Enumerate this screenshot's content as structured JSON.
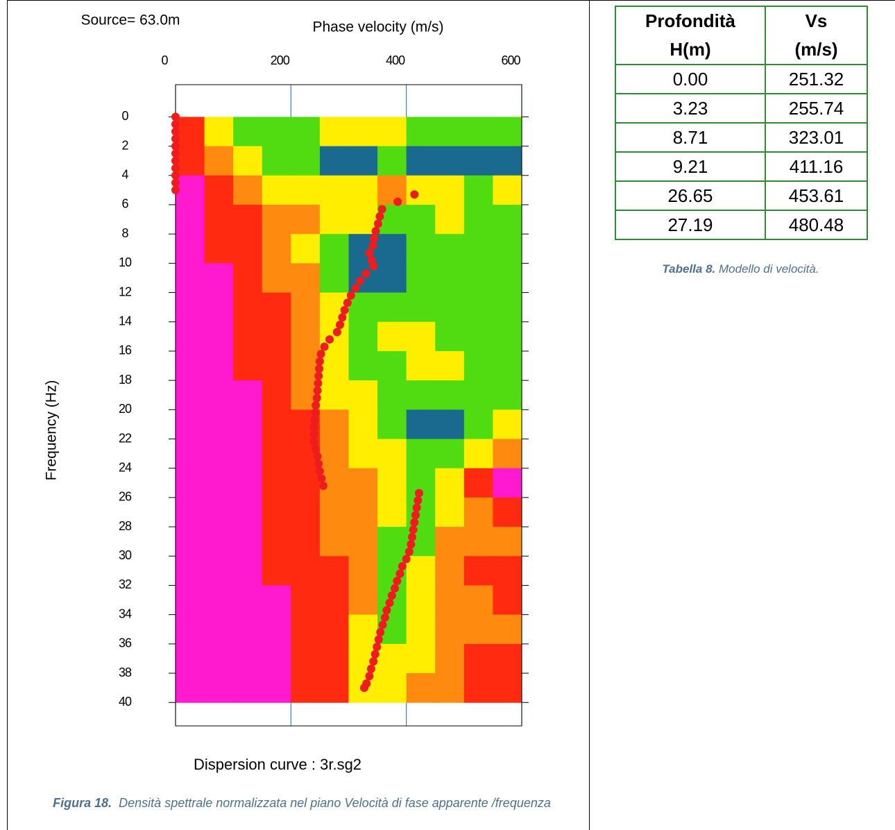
{
  "figure": {
    "chart_data": {
      "type": "heatmap",
      "annotation": "Source= 63.0m",
      "x_label": "Phase velocity (m/s)",
      "y_label": "Frequency (Hz)",
      "footer": "Dispersion curve : 3r.sg2",
      "xlim": [
        0,
        600
      ],
      "xticks": [
        0,
        200,
        400,
        600
      ],
      "ylim": [
        -2.2,
        41.6
      ],
      "y_inverted": true,
      "yticks": [
        0,
        2,
        4,
        6,
        8,
        10,
        12,
        14,
        16,
        18,
        20,
        22,
        24,
        26,
        28,
        30,
        32,
        34,
        36,
        38,
        40
      ],
      "grid": true,
      "grid_color": "#3a7fc0",
      "velocity_bins": [
        0,
        50,
        100,
        150,
        200,
        250,
        300,
        350,
        400,
        450,
        500,
        550,
        600
      ],
      "frequency_bins": [
        0,
        2,
        4,
        6,
        8,
        10,
        12,
        14,
        16,
        18,
        20,
        22,
        24,
        26,
        28,
        30,
        32,
        34,
        36,
        38,
        40
      ],
      "colorscale": [
        "#ff1ad0",
        "#ff2a10",
        "#ff8a10",
        "#ffee00",
        "#50dc10",
        "#1a6a90"
      ],
      "z": [
        [
          0.2,
          0.6,
          0.7,
          0.8,
          0.7,
          0.5,
          0.6,
          0.5,
          0.7,
          0.8,
          0.8,
          0.8
        ],
        [
          0.1,
          0.3,
          0.5,
          0.8,
          0.8,
          0.9,
          0.9,
          0.8,
          0.9,
          1,
          1,
          0.9
        ],
        [
          0,
          0.2,
          0.3,
          0.5,
          0.6,
          0.6,
          0.5,
          0.4,
          0.5,
          0.6,
          0.7,
          0.6
        ],
        [
          0,
          0.1,
          0.2,
          0.3,
          0.4,
          0.5,
          0.6,
          0.7,
          0.7,
          0.6,
          0.7,
          0.7
        ],
        [
          0,
          0.1,
          0.2,
          0.3,
          0.5,
          0.8,
          0.9,
          0.9,
          0.8,
          0.7,
          0.7,
          0.7
        ],
        [
          0,
          0,
          0.2,
          0.3,
          0.4,
          0.7,
          0.9,
          0.9,
          0.8,
          0.8,
          0.7,
          0.7
        ],
        [
          0,
          0,
          0.1,
          0.2,
          0.3,
          0.6,
          0.8,
          0.7,
          0.7,
          0.8,
          0.8,
          0.7
        ],
        [
          0,
          0,
          0.1,
          0.2,
          0.3,
          0.6,
          0.7,
          0.5,
          0.5,
          0.7,
          0.8,
          0.8
        ],
        [
          0,
          0,
          0.1,
          0.2,
          0.3,
          0.5,
          0.7,
          0.7,
          0.6,
          0.6,
          0.7,
          0.8
        ],
        [
          0,
          0,
          0,
          0.1,
          0.3,
          0.5,
          0.6,
          0.7,
          0.7,
          0.8,
          0.8,
          0.7
        ],
        [
          0,
          0,
          0,
          0.1,
          0.2,
          0.4,
          0.6,
          0.7,
          0.9,
          1,
          0.8,
          0.6
        ],
        [
          0,
          0,
          0,
          0.1,
          0.2,
          0.3,
          0.5,
          0.6,
          0.8,
          0.8,
          0.6,
          0.4
        ],
        [
          0,
          0,
          0,
          0.1,
          0.2,
          0.3,
          0.4,
          0.6,
          0.8,
          0.6,
          0.2,
          0
        ],
        [
          0,
          0,
          0,
          0.1,
          0.2,
          0.3,
          0.4,
          0.6,
          0.8,
          0.5,
          0.3,
          0.2
        ],
        [
          0,
          0,
          0,
          0.1,
          0.2,
          0.3,
          0.4,
          0.7,
          0.7,
          0.4,
          0.3,
          0.3
        ],
        [
          0,
          0,
          0,
          0.1,
          0.2,
          0.2,
          0.4,
          0.7,
          0.5,
          0.4,
          0.2,
          0.2
        ],
        [
          0,
          0,
          0,
          0,
          0.1,
          0.2,
          0.4,
          0.7,
          0.6,
          0.4,
          0.3,
          0.2
        ],
        [
          0,
          0,
          0,
          0,
          0.1,
          0.2,
          0.5,
          0.7,
          0.5,
          0.4,
          0.3,
          0.3
        ],
        [
          0,
          0,
          0,
          0,
          0.1,
          0.2,
          0.5,
          0.6,
          0.5,
          0.3,
          0.1,
          0.1
        ],
        [
          0,
          0,
          0,
          0,
          0.1,
          0.2,
          0.6,
          0.5,
          0.4,
          0.3,
          0.2,
          0.2
        ]
      ],
      "points": {
        "color": "#ee1c1c",
        "frequency": [
          0,
          0.5,
          1,
          1.5,
          2,
          2.5,
          3,
          3.5,
          4,
          4.5,
          5,
          5.3,
          5.8,
          6.3,
          6.8,
          7.3,
          7.8,
          8.3,
          8.8,
          9.3,
          9.8,
          10.2,
          10.7,
          11.2,
          11.7,
          12.2,
          12.7,
          13.2,
          13.7,
          14.2,
          14.7,
          15.2,
          15.7,
          16.2,
          16.7,
          17.2,
          17.7,
          18.2,
          18.7,
          19.2,
          19.7,
          20.2,
          20.7,
          21.2,
          21.7,
          22.2,
          22.7,
          23.2,
          23.7,
          24.2,
          24.7,
          25.2,
          25.7,
          26.2,
          26.7,
          27.2,
          27.7,
          28.2,
          28.7,
          29.2,
          29.7,
          30.2,
          30.7,
          31.2,
          31.7,
          32.2,
          32.7,
          33.2,
          33.7,
          34.2,
          34.7,
          35.2,
          35.7,
          36.2,
          36.7,
          37.2,
          37.7,
          38.2,
          38.7,
          39
        ],
        "velocity": [
          0,
          0,
          0,
          0,
          0,
          0,
          0,
          0,
          0,
          0,
          0,
          414,
          385,
          358,
          354,
          351,
          347,
          344,
          342,
          336,
          340,
          343,
          330,
          320,
          312,
          304,
          298,
          293,
          289,
          285,
          280,
          267,
          258,
          252,
          250,
          249,
          248,
          247,
          246,
          245,
          243,
          242,
          241,
          240,
          240,
          240,
          243,
          246,
          248,
          250,
          253,
          256,
          422,
          420,
          418,
          416,
          414,
          412,
          410,
          408,
          405,
          400,
          393,
          389,
          384,
          380,
          375,
          371,
          366,
          363,
          359,
          355,
          352,
          349,
          346,
          343,
          339,
          336,
          331,
          327
        ]
      }
    },
    "caption_label": "Figura 18.",
    "caption_text": "Densità spettrale normalizzata nel piano Velocità di fase apparente /frequenza"
  },
  "table": {
    "header": [
      [
        "Profondità",
        "H(m)"
      ],
      [
        "Vs",
        "(m/s)"
      ]
    ],
    "rows": [
      [
        "0.00",
        "251.32"
      ],
      [
        "3.23",
        "255.74"
      ],
      [
        "8.71",
        "323.01"
      ],
      [
        "9.21",
        "411.16"
      ],
      [
        "26.65",
        "453.61"
      ],
      [
        "27.19",
        "480.48"
      ]
    ],
    "caption_label": "Tabella 8.",
    "caption_text": "Modello di velocità."
  }
}
